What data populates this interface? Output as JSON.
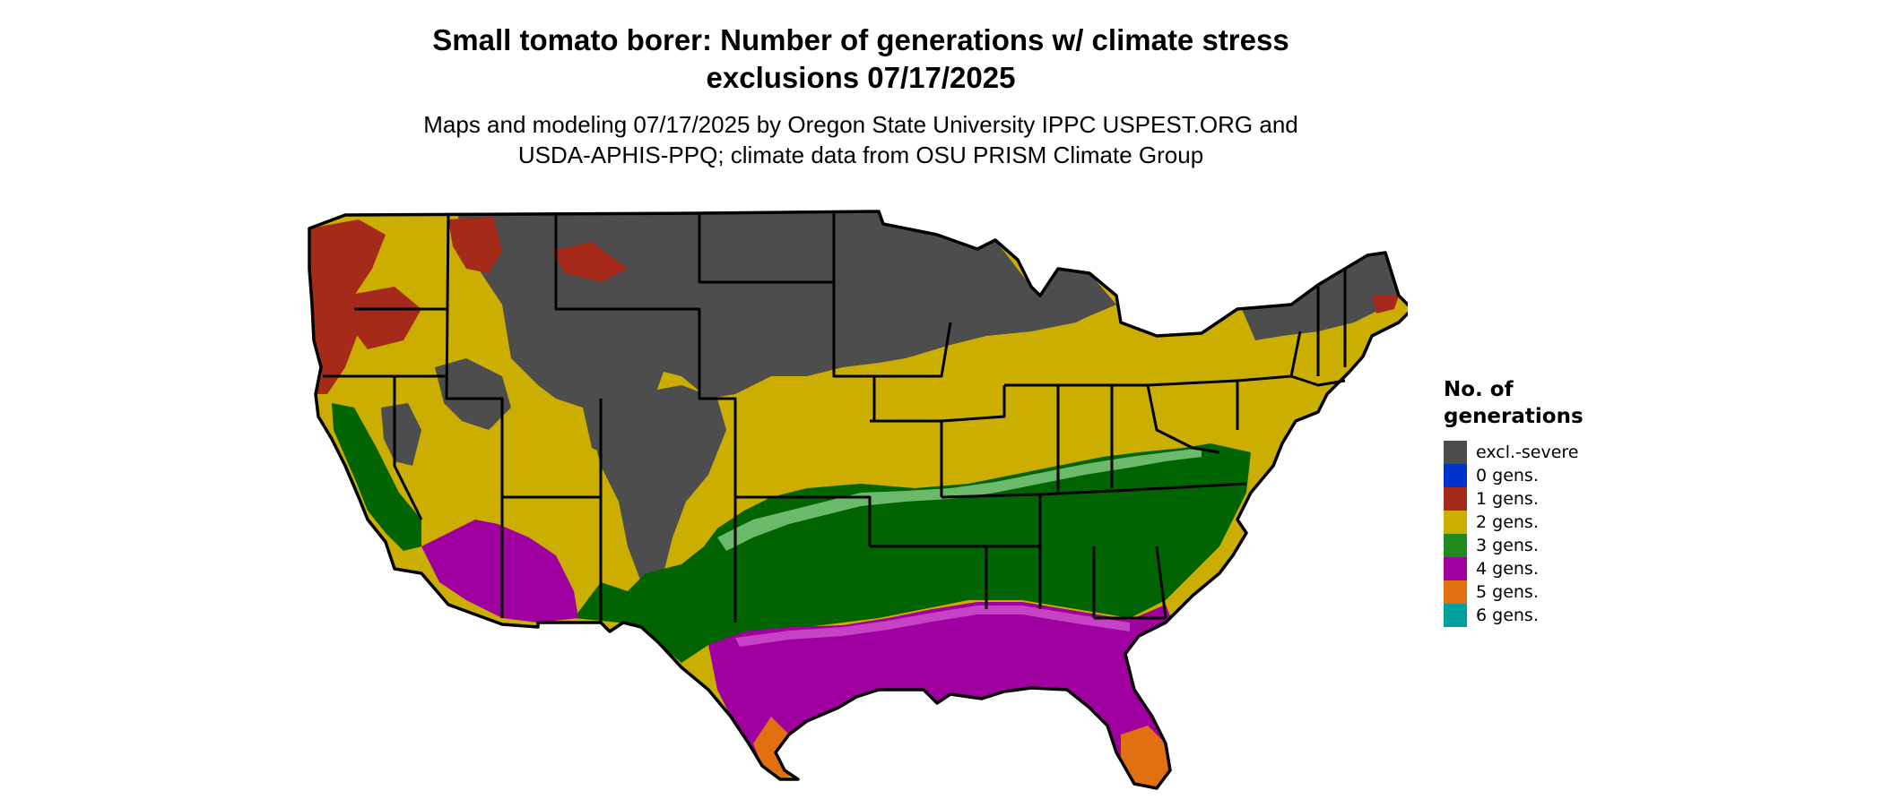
{
  "title": {
    "line1": "Small tomato borer: Number of generations w/ climate stress",
    "line2": "exclusions 07/17/2025"
  },
  "subtitle": {
    "line1": "Maps and modeling 07/17/2025 by Oregon State University IPPC USPEST.ORG and",
    "line2": "USDA-APHIS-PPQ; climate data from OSU PRISM Climate Group"
  },
  "map": {
    "region": "conterminous United States",
    "colors": {
      "excl_severe": "#4d4d4d",
      "gen0": "#0033cc",
      "gen1": "#a52a1a",
      "gen2": "#ccae00",
      "gen3": "#006400",
      "gen3_light": "#7ec87e",
      "gen4": "#a000a0",
      "gen4_light": "#e070e0",
      "gen5": "#e07010",
      "gen6": "#00a0a0",
      "borders": "#000000"
    }
  },
  "legend": {
    "title_line1": "No. of",
    "title_line2": "generations",
    "items": [
      {
        "label": "excl.-severe",
        "color": "#4d4d4d"
      },
      {
        "label": "0 gens.",
        "color": "#0033cc"
      },
      {
        "label": "1 gens.",
        "color": "#a52a1a"
      },
      {
        "label": "2 gens.",
        "color": "#ccae00"
      },
      {
        "label": "3 gens.",
        "color": "#1f8a1f"
      },
      {
        "label": "4 gens.",
        "color": "#a000a0"
      },
      {
        "label": "5 gens.",
        "color": "#e07010"
      },
      {
        "label": "6 gens.",
        "color": "#00a0a0"
      }
    ]
  }
}
